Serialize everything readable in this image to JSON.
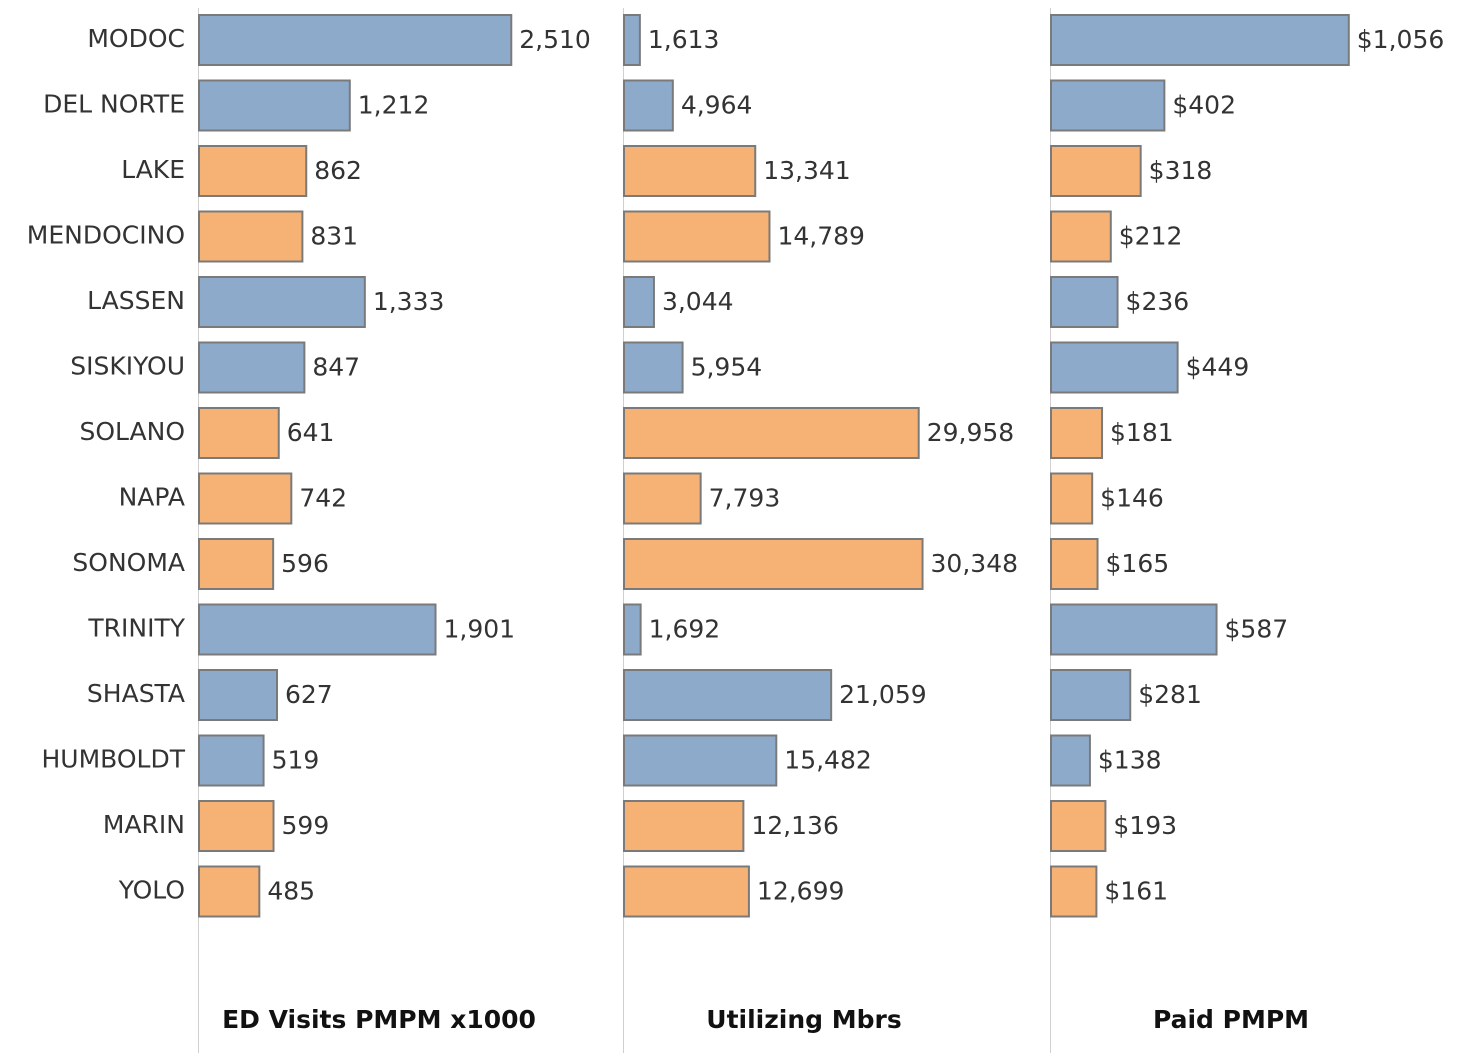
{
  "chart_data": [
    {
      "type": "bar",
      "orientation": "horizontal",
      "xlabel": "ED Visits PMPM x1000",
      "categories": [
        "MODOC",
        "DEL NORTE",
        "LAKE",
        "MENDOCINO",
        "LASSEN",
        "SISKIYOU",
        "SOLANO",
        "NAPA",
        "SONOMA",
        "TRINITY",
        "SHASTA",
        "HUMBOLDT",
        "MARIN",
        "YOLO"
      ],
      "values": [
        2510,
        1212,
        862,
        831,
        1333,
        847,
        641,
        742,
        596,
        1901,
        627,
        519,
        599,
        485
      ],
      "value_labels": [
        "2,510",
        "1,212",
        "862",
        "831",
        "1,333",
        "847",
        "641",
        "742",
        "596",
        "1,901",
        "627",
        "519",
        "599",
        "485"
      ],
      "colors": [
        "#8eaacb",
        "#8eaacb",
        "#f5b274",
        "#f5b274",
        "#8eaacb",
        "#8eaacb",
        "#f5b274",
        "#f5b274",
        "#f5b274",
        "#8eaacb",
        "#8eaacb",
        "#8eaacb",
        "#f5b274",
        "#f5b274"
      ],
      "xlim": [
        0,
        3400
      ]
    },
    {
      "type": "bar",
      "orientation": "horizontal",
      "xlabel": "Utilizing Mbrs",
      "values": [
        1613,
        4964,
        13341,
        14789,
        3044,
        5954,
        29958,
        7793,
        30348,
        1692,
        21059,
        15482,
        12136,
        12699
      ],
      "value_labels": [
        "1,613",
        "4,964",
        "13,341",
        "14,789",
        "3,044",
        "5,954",
        "29,958",
        "7,793",
        "30,348",
        "1,692",
        "21,059",
        "15,482",
        "12,136",
        "12,699"
      ],
      "colors": [
        "#8eaacb",
        "#8eaacb",
        "#f5b274",
        "#f5b274",
        "#8eaacb",
        "#8eaacb",
        "#f5b274",
        "#f5b274",
        "#f5b274",
        "#8eaacb",
        "#8eaacb",
        "#8eaacb",
        "#f5b274",
        "#f5b274"
      ],
      "xlim": [
        0,
        43000
      ]
    },
    {
      "type": "bar",
      "orientation": "horizontal",
      "xlabel": "Paid PMPM",
      "values": [
        1056,
        402,
        318,
        212,
        236,
        449,
        181,
        146,
        165,
        587,
        281,
        138,
        193,
        161
      ],
      "value_labels": [
        "$1,056",
        "$402",
        "$318",
        "$212",
        "$236",
        "$449",
        "$181",
        "$146",
        "$165",
        "$587",
        "$281",
        "$138",
        "$193",
        "$161"
      ],
      "colors": [
        "#8eaacb",
        "#8eaacb",
        "#f5b274",
        "#f5b274",
        "#8eaacb",
        "#8eaacb",
        "#f5b274",
        "#f5b274",
        "#f5b274",
        "#8eaacb",
        "#8eaacb",
        "#8eaacb",
        "#f5b274",
        "#f5b274"
      ],
      "xlim": [
        0,
        1500
      ]
    }
  ]
}
